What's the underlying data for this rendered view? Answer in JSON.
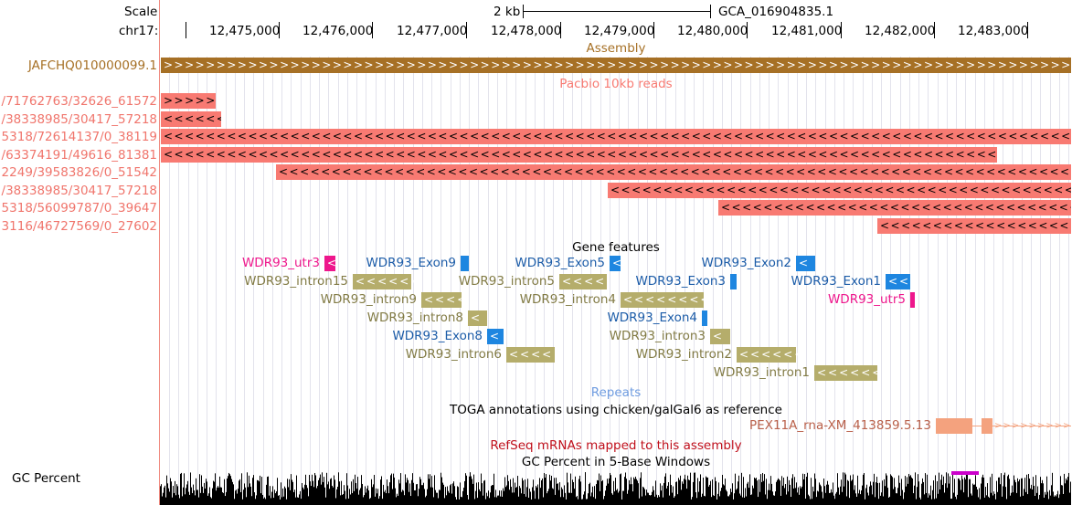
{
  "ruler": {
    "scale_label": "Scale",
    "chrom_label": "chr17:",
    "scalebar_text": "2 kb",
    "assembly_name": "GCA_016904835.1",
    "positions": [
      "12,475,000",
      "12,476,000",
      "12,477,000",
      "12,478,000",
      "12,479,000",
      "12,480,000",
      "12,481,000",
      "12,482,000",
      "12,483,000"
    ]
  },
  "tracks": {
    "assembly": {
      "title": "Assembly",
      "label": "JAFCHQ010000099.1",
      "color": "#a67025"
    },
    "pacbio": {
      "title": "Pacbio 10kb reads",
      "color": "#f87a72",
      "labelColor": "#f0756c",
      "reads": [
        {
          "label": "/71762763/32626_61572",
          "dir": ">"
        },
        {
          "label": "/38338985/30417_57218",
          "dir": "<"
        },
        {
          "label": "5318/72614137/0_38119",
          "dir": "<"
        },
        {
          "label": "/63374191/49616_81381",
          "dir": "<"
        },
        {
          "label": "2249/39583826/0_51542",
          "dir": "<"
        },
        {
          "label": "/38338985/30417_57218",
          "dir": "<"
        },
        {
          "label": "5318/56099787/0_39647",
          "dir": "<"
        },
        {
          "label": "3116/46727569/0_27602",
          "dir": "<"
        }
      ]
    },
    "gene_features": {
      "title": "Gene features",
      "features": [
        {
          "name": "WDR93_utr3",
          "type": "utr"
        },
        {
          "name": "WDR93_Exon9",
          "type": "exon"
        },
        {
          "name": "WDR93_Exon5",
          "type": "exon"
        },
        {
          "name": "WDR93_Exon2",
          "type": "exon"
        },
        {
          "name": "WDR93_intron15",
          "type": "intron"
        },
        {
          "name": "WDR93_intron5",
          "type": "intron"
        },
        {
          "name": "WDR93_Exon3",
          "type": "exon"
        },
        {
          "name": "WDR93_Exon1",
          "type": "exon"
        },
        {
          "name": "WDR93_intron9",
          "type": "intron"
        },
        {
          "name": "WDR93_intron4",
          "type": "intron"
        },
        {
          "name": "WDR93_utr5",
          "type": "utr"
        },
        {
          "name": "WDR93_intron8",
          "type": "intron"
        },
        {
          "name": "WDR93_Exon4",
          "type": "exon"
        },
        {
          "name": "WDR93_Exon8",
          "type": "exon"
        },
        {
          "name": "WDR93_intron3",
          "type": "intron"
        },
        {
          "name": "WDR93_intron6",
          "type": "intron"
        },
        {
          "name": "WDR93_intron2",
          "type": "intron"
        },
        {
          "name": "WDR93_intron1",
          "type": "intron"
        }
      ],
      "colors": {
        "utr": "#ee178c",
        "exon": "#1e86e0",
        "intron": "#b5ad6b"
      },
      "labelColors": {
        "utr": "#ee178c",
        "exon": "#1c5ca8",
        "intron": "#827b45"
      }
    },
    "repeats": {
      "title": "Repeats",
      "color": "#6f9ce0"
    },
    "toga": {
      "title": "TOGA annotations using chicken/galGal6 as reference",
      "gene_label": "PEX11A_rna-XM_413859.5.13",
      "color": "#f4a27e",
      "labelColor": "#b9604a"
    },
    "refseq": {
      "title": "RefSeq mRNAs mapped to this assembly",
      "color": "#c0101c"
    },
    "gc": {
      "title": "GC Percent in 5-Base Windows",
      "label": "GC Percent"
    }
  }
}
